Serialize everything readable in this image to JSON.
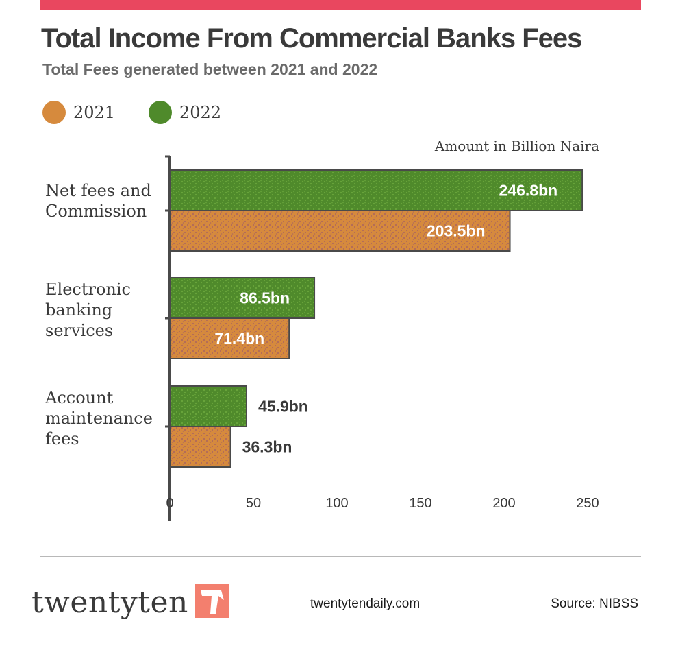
{
  "header": {
    "title": "Total Income From Commercial Banks Fees",
    "subtitle": "Total Fees generated between 2021 and 2022"
  },
  "colors": {
    "accent_bar": "#e9475f",
    "series_2021": "#d68a3d",
    "series_2021_speckle": "#b06a5a",
    "series_2022": "#4f8a2b",
    "series_2022_speckle": "#6aa63c",
    "logo_mark": "#f37f6e"
  },
  "legend": [
    {
      "label": "2021",
      "color": "#d68a3d"
    },
    {
      "label": "2022",
      "color": "#4f8a2b"
    }
  ],
  "chart_data": {
    "type": "bar",
    "orientation": "horizontal",
    "unit_label": "Amount in Billion Naira",
    "categories": [
      [
        "Net fees and",
        "Commission"
      ],
      [
        "Electronic",
        "banking",
        "services"
      ],
      [
        "Account",
        "maintenance",
        "fees"
      ]
    ],
    "series": [
      {
        "name": "2022",
        "values": [
          246.8,
          86.5,
          45.9
        ],
        "labels": [
          "246.8bn",
          "86.5bn",
          "45.9bn"
        ]
      },
      {
        "name": "2021",
        "values": [
          203.5,
          71.4,
          36.3
        ],
        "labels": [
          "203.5bn",
          "71.4bn",
          "36.3bn"
        ]
      }
    ],
    "xlim": [
      0,
      250
    ],
    "xticks": [
      0,
      50,
      100,
      150,
      200,
      250
    ],
    "grid": false,
    "legend_position": "top-left"
  },
  "footer": {
    "logo_text": "twentyten",
    "website": "twentytendaily.com",
    "source": "Source: NIBSS"
  }
}
